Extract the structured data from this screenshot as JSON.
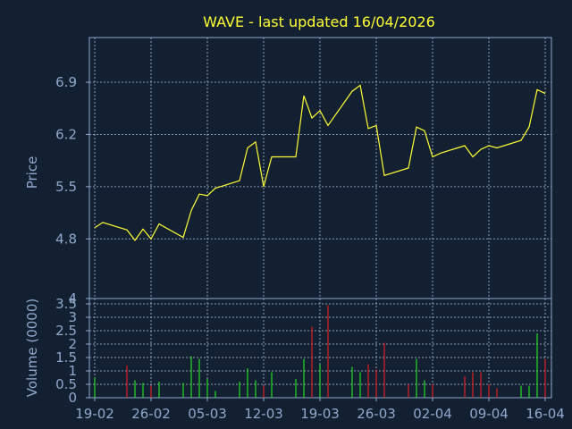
{
  "chart_data": [
    {
      "type": "line",
      "title": "WAVE - last updated 16/04/2026",
      "ylabel": "Price",
      "ylim": [
        4,
        7.5
      ],
      "yticks": [
        "4",
        "4.8",
        "5.5",
        "6.2",
        "6.9"
      ],
      "xlim": [
        "2026-02-19",
        "2026-04-16"
      ],
      "grid": true,
      "line_color": "#ffff33",
      "series": [
        {
          "x": [
            "2026-02-19",
            "2026-02-20",
            "2026-02-23",
            "2026-02-24",
            "2026-02-25",
            "2026-02-26",
            "2026-02-27",
            "2026-03-02",
            "2026-03-03",
            "2026-03-04",
            "2026-03-05",
            "2026-03-06",
            "2026-03-09",
            "2026-03-10",
            "2026-03-11",
            "2026-03-12",
            "2026-03-13",
            "2026-03-16",
            "2026-03-17",
            "2026-03-18",
            "2026-03-19",
            "2026-03-20",
            "2026-03-23",
            "2026-03-24",
            "2026-03-25",
            "2026-03-26",
            "2026-03-27",
            "2026-03-30",
            "2026-03-31",
            "2026-04-01",
            "2026-04-02",
            "2026-04-03",
            "2026-04-06",
            "2026-04-07",
            "2026-04-08",
            "2026-04-09",
            "2026-04-10",
            "2026-04-13",
            "2026-04-14",
            "2026-04-15",
            "2026-04-16"
          ],
          "values": [
            4.95,
            5.02,
            4.92,
            4.78,
            4.93,
            4.8,
            5.0,
            4.82,
            5.18,
            5.4,
            5.38,
            5.48,
            5.58,
            6.02,
            6.1,
            5.5,
            5.9,
            5.9,
            6.72,
            6.42,
            6.52,
            6.32,
            6.78,
            6.86,
            6.28,
            6.32,
            5.65,
            5.75,
            6.3,
            6.25,
            5.9,
            5.95,
            6.05,
            5.9,
            6.0,
            6.05,
            6.02,
            6.12,
            6.3,
            6.8,
            6.75
          ]
        }
      ]
    },
    {
      "type": "bar",
      "ylabel": "Volume (0000)",
      "ylim": [
        0,
        3.7
      ],
      "yticks": [
        "0",
        "0.5",
        "1",
        "1.5",
        "2",
        "2.5",
        "3",
        "3.5"
      ],
      "xticks": [
        "19-02",
        "26-02",
        "05-03",
        "12-03",
        "19-03",
        "26-03",
        "02-04",
        "09-04",
        "16-04"
      ],
      "xlim": [
        "2026-02-19",
        "2026-04-16"
      ],
      "grid": true,
      "colors": {
        "up": "#22dd22",
        "down": "#dd2222"
      },
      "x": [
        "2026-02-19",
        "2026-02-20",
        "2026-02-23",
        "2026-02-24",
        "2026-02-25",
        "2026-02-26",
        "2026-02-27",
        "2026-03-02",
        "2026-03-03",
        "2026-03-04",
        "2026-03-05",
        "2026-03-06",
        "2026-03-09",
        "2026-03-10",
        "2026-03-11",
        "2026-03-12",
        "2026-03-13",
        "2026-03-16",
        "2026-03-17",
        "2026-03-18",
        "2026-03-19",
        "2026-03-20",
        "2026-03-23",
        "2026-03-24",
        "2026-03-25",
        "2026-03-26",
        "2026-03-27",
        "2026-03-30",
        "2026-03-31",
        "2026-04-01",
        "2026-04-02",
        "2026-04-03",
        "2026-04-06",
        "2026-04-07",
        "2026-04-08",
        "2026-04-09",
        "2026-04-10",
        "2026-04-13",
        "2026-04-14",
        "2026-04-15",
        "2026-04-16"
      ],
      "values": [
        0.75,
        0,
        1.2,
        0.65,
        0.55,
        0.45,
        0.6,
        0.55,
        1.55,
        1.45,
        0.7,
        0.25,
        0.6,
        1.1,
        0.65,
        0.45,
        0.95,
        0.7,
        1.45,
        2.65,
        1.25,
        3.45,
        1.15,
        0.95,
        1.25,
        1.05,
        2.05,
        0.5,
        1.45,
        0.65,
        0.5,
        0,
        0.8,
        0.95,
        0.95,
        0.5,
        0.35,
        0.45,
        0.45,
        2.4,
        1.45
      ],
      "direction": [
        "up",
        "up",
        "down",
        "up",
        "up",
        "down",
        "up",
        "up",
        "up",
        "up",
        "up",
        "up",
        "up",
        "up",
        "up",
        "down",
        "up",
        "up",
        "up",
        "down",
        "up",
        "down",
        "up",
        "up",
        "down",
        "down",
        "down",
        "down",
        "up",
        "up",
        "down",
        "down",
        "down",
        "down",
        "down",
        "down",
        "down",
        "up",
        "up",
        "up",
        "down"
      ]
    }
  ]
}
